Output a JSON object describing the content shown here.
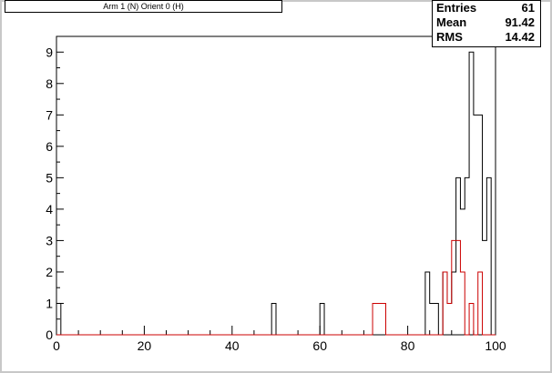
{
  "title": "Arm 1 (N) Orient 0 (H)",
  "stats": [
    {
      "label": "Entries",
      "value": "61"
    },
    {
      "label": "Mean",
      "value": "91.42"
    },
    {
      "label": "RMS",
      "value": "14.42"
    }
  ],
  "colors": {
    "frame_bg": "#c8c8c8",
    "pad_bg": "#ffffff",
    "series_black": "#000000",
    "series_red": "#cc0000"
  },
  "chart_data": {
    "type": "bar",
    "xlim": [
      0,
      100
    ],
    "ylim": [
      0,
      9.5
    ],
    "bin_width": 1,
    "x_ticks": [
      0,
      20,
      40,
      60,
      80,
      100
    ],
    "y_ticks": [
      0,
      1,
      2,
      3,
      4,
      5,
      6,
      7,
      8,
      9
    ],
    "series": [
      {
        "color": "#000000",
        "bins": [
          {
            "x": 0,
            "y": 1
          },
          {
            "x": 49,
            "y": 1
          },
          {
            "x": 60,
            "y": 1
          },
          {
            "x": 84,
            "y": 2
          },
          {
            "x": 85,
            "y": 1
          },
          {
            "x": 86,
            "y": 1
          },
          {
            "x": 88,
            "y": 2
          },
          {
            "x": 89,
            "y": 1
          },
          {
            "x": 90,
            "y": 2
          },
          {
            "x": 91,
            "y": 5
          },
          {
            "x": 92,
            "y": 4
          },
          {
            "x": 93,
            "y": 5
          },
          {
            "x": 94,
            "y": 9
          },
          {
            "x": 95,
            "y": 7
          },
          {
            "x": 96,
            "y": 7
          },
          {
            "x": 97,
            "y": 3
          },
          {
            "x": 98,
            "y": 5
          }
        ]
      },
      {
        "color": "#cc0000",
        "bins": [
          {
            "x": 72,
            "y": 1
          },
          {
            "x": 73,
            "y": 1
          },
          {
            "x": 74,
            "y": 1
          },
          {
            "x": 88,
            "y": 2
          },
          {
            "x": 89,
            "y": 1
          },
          {
            "x": 90,
            "y": 3
          },
          {
            "x": 91,
            "y": 3
          },
          {
            "x": 92,
            "y": 2
          },
          {
            "x": 94,
            "y": 1
          },
          {
            "x": 96,
            "y": 2
          }
        ]
      }
    ]
  }
}
